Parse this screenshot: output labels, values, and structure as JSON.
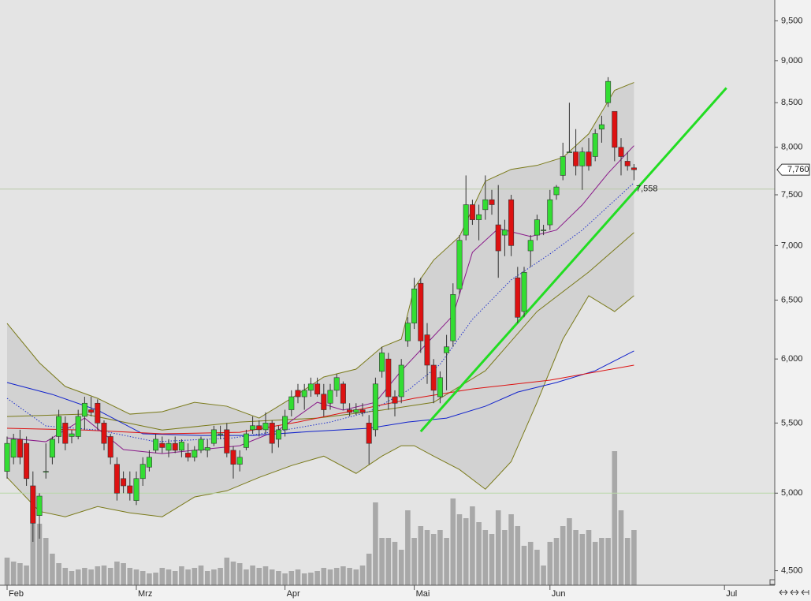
{
  "chart_data": {
    "type": "candlestick",
    "log_scale": true,
    "ylim": [
      4412,
      9773
    ],
    "yticks": [
      {
        "value": 4500,
        "label": "4,500"
      },
      {
        "value": 5000,
        "label": "5,000"
      },
      {
        "value": 5500,
        "label": "5,500"
      },
      {
        "value": 6000,
        "label": "6,000"
      },
      {
        "value": 6500,
        "label": "6,500"
      },
      {
        "value": 7000,
        "label": "7,000"
      },
      {
        "value": 7500,
        "label": "7,500"
      },
      {
        "value": 8000,
        "label": "8,000"
      },
      {
        "value": 8500,
        "label": "8,500"
      },
      {
        "value": 9000,
        "label": "9,000"
      },
      {
        "value": 9500,
        "label": "9,500"
      }
    ],
    "categories": [
      "Feb",
      null,
      null,
      null,
      null,
      null,
      null,
      null,
      null,
      null,
      null,
      null,
      null,
      null,
      null,
      null,
      null,
      null,
      null,
      null,
      "Mrz",
      null,
      null,
      null,
      null,
      null,
      null,
      null,
      null,
      null,
      null,
      null,
      null,
      null,
      null,
      null,
      null,
      null,
      null,
      null,
      null,
      null,
      null,
      "Apr",
      null,
      null,
      null,
      null,
      null,
      null,
      null,
      null,
      null,
      null,
      null,
      null,
      null,
      null,
      null,
      null,
      null,
      null,
      null,
      "Mai",
      null,
      null,
      null,
      null,
      null,
      null,
      null,
      null,
      null,
      null,
      null,
      null,
      null,
      null,
      null,
      null,
      null,
      null,
      null,
      null,
      "Jun",
      null,
      null,
      null,
      null,
      null,
      null,
      null,
      null,
      null,
      null,
      null,
      null,
      null,
      null,
      null,
      null,
      null,
      null,
      null,
      null,
      null,
      null,
      null,
      null,
      null,
      null,
      "Jul"
    ],
    "up_color": "#33dd33",
    "down_color": "#dd1111",
    "open": [
      5150,
      5250,
      5380,
      5350,
      5050,
      4850,
      5150,
      5250,
      5400,
      5500,
      5400,
      5400,
      5550,
      5600,
      5650,
      5500,
      5400,
      5200,
      5100,
      5050,
      4950,
      5100,
      5180,
      5300,
      5350,
      5300,
      5350,
      5300,
      5280,
      5250,
      5300,
      5300,
      5350,
      5420,
      5450,
      5300,
      5200,
      5320,
      5450,
      5480,
      5450,
      5500,
      5380,
      5450,
      5600,
      5750,
      5700,
      5750,
      5800,
      5720,
      5650,
      5750,
      5800,
      5600,
      5580,
      5600,
      5500,
      5450,
      5900,
      6000,
      5700,
      5700,
      6150,
      6300,
      6650,
      6200,
      5950,
      5700,
      6050,
      6150,
      6600,
      7100,
      7400,
      7250,
      7350,
      7450,
      7200,
      7100,
      7450,
      6700,
      6400,
      6950,
      7100,
      7150,
      7200,
      7500,
      7700,
      7950,
      7950,
      7800,
      7950,
      7900,
      8200,
      8500,
      8400,
      8000,
      7850,
      7780,
      null,
      null,
      null,
      null,
      null,
      null,
      null,
      null,
      null,
      null,
      null,
      null,
      null,
      null
    ],
    "high": [
      5400,
      5420,
      5450,
      5400,
      5150,
      5000,
      5350,
      5400,
      5600,
      5550,
      5450,
      5600,
      5700,
      5700,
      5680,
      5520,
      5420,
      5250,
      5150,
      5150,
      5150,
      5250,
      5300,
      5420,
      5400,
      5380,
      5400,
      5380,
      5350,
      5330,
      5400,
      5380,
      5480,
      5480,
      5500,
      5330,
      5300,
      5450,
      5550,
      5520,
      5580,
      5520,
      5480,
      5600,
      5750,
      5800,
      5800,
      5850,
      5850,
      5800,
      5800,
      5880,
      5820,
      5650,
      5650,
      5650,
      5560,
      5850,
      6100,
      6050,
      5750,
      6000,
      6350,
      6700,
      6700,
      6300,
      6000,
      5900,
      6200,
      6650,
      7100,
      7700,
      7450,
      7400,
      7700,
      7550,
      7600,
      7250,
      7500,
      6800,
      6800,
      7100,
      7300,
      7200,
      7550,
      7600,
      8050,
      8500,
      8200,
      8000,
      8100,
      8200,
      8350,
      8800,
      8400,
      8100,
      7950,
      7820,
      null,
      null,
      null,
      null,
      null,
      null,
      null,
      null,
      null,
      null,
      null,
      null,
      null,
      null
    ],
    "low": [
      5100,
      5200,
      5200,
      5050,
      4680,
      4700,
      5100,
      5200,
      5350,
      5300,
      5350,
      5380,
      5450,
      5550,
      5450,
      5300,
      5200,
      4950,
      5000,
      4950,
      4920,
      5050,
      5150,
      5280,
      5280,
      5250,
      5280,
      5250,
      5220,
      5220,
      5280,
      5250,
      5330,
      5380,
      5250,
      5100,
      5150,
      5300,
      5420,
      5400,
      5420,
      5280,
      5320,
      5400,
      5550,
      5650,
      5600,
      5700,
      5700,
      5550,
      5600,
      5700,
      5600,
      5550,
      5560,
      5550,
      5200,
      5400,
      5850,
      5600,
      5550,
      5650,
      6100,
      6250,
      6050,
      5800,
      5650,
      5650,
      5750,
      6100,
      6550,
      7050,
      7200,
      7050,
      7250,
      7300,
      6700,
      6900,
      6900,
      6300,
      6350,
      6800,
      7050,
      7100,
      7150,
      7450,
      7650,
      7950,
      7700,
      7550,
      7750,
      7850,
      8050,
      8450,
      7850,
      7700,
      7750,
      7650,
      null,
      null,
      null,
      null,
      null,
      null,
      null,
      null,
      null,
      null,
      null,
      null,
      null,
      null
    ],
    "close": [
      5350,
      5380,
      5250,
      5100,
      4800,
      4980,
      5150,
      5380,
      5550,
      5350,
      5420,
      5550,
      5650,
      5580,
      5500,
      5350,
      5250,
      5000,
      5050,
      5000,
      5100,
      5200,
      5250,
      5380,
      5320,
      5350,
      5300,
      5360,
      5250,
      5300,
      5380,
      5320,
      5450,
      5420,
      5280,
      5200,
      5250,
      5420,
      5480,
      5450,
      5500,
      5350,
      5450,
      5550,
      5700,
      5700,
      5750,
      5800,
      5720,
      5600,
      5750,
      5850,
      5650,
      5580,
      5600,
      5580,
      5350,
      5800,
      6050,
      5700,
      5650,
      5950,
      6300,
      6600,
      6150,
      5950,
      5750,
      5850,
      6100,
      6550,
      7050,
      7400,
      7250,
      7300,
      7450,
      7400,
      6950,
      7150,
      7000,
      6350,
      6750,
      7050,
      7250,
      7150,
      7450,
      7580,
      7900,
      7950,
      7800,
      7950,
      7800,
      8150,
      8250,
      8750,
      8000,
      7900,
      7800,
      7760,
      null,
      null,
      null,
      null,
      null,
      null,
      null,
      null,
      null,
      null,
      null,
      null,
      null,
      null
    ],
    "volume": [
      35,
      30,
      28,
      25,
      100,
      78,
      60,
      40,
      28,
      22,
      18,
      20,
      22,
      20,
      24,
      25,
      22,
      30,
      28,
      22,
      20,
      18,
      15,
      16,
      22,
      20,
      18,
      24,
      20,
      22,
      25,
      18,
      20,
      22,
      35,
      30,
      28,
      20,
      25,
      22,
      24,
      20,
      18,
      15,
      18,
      20,
      15,
      16,
      18,
      22,
      20,
      22,
      24,
      22,
      20,
      25,
      40,
      105,
      60,
      60,
      55,
      45,
      95,
      60,
      75,
      70,
      65,
      70,
      60,
      110,
      90,
      85,
      100,
      80,
      70,
      65,
      95,
      70,
      90,
      75,
      50,
      55,
      45,
      25,
      55,
      60,
      75,
      85,
      70,
      65,
      70,
      55,
      60,
      60,
      170,
      95,
      60,
      70,
      null,
      null,
      null,
      null,
      null,
      null,
      null,
      null,
      null,
      null,
      null,
      null,
      null,
      null
    ],
    "volume_color": "#a8a8a8",
    "band": {
      "color": "#d2d2d2",
      "line_color": "#7a7a1a",
      "x": [
        0,
        5,
        9,
        14,
        19,
        24,
        29,
        34,
        39,
        44,
        49,
        54,
        58,
        61,
        63,
        66,
        70,
        74,
        78,
        82,
        86,
        90,
        94,
        97
      ],
      "upper": [
        6297,
        5969,
        5780,
        5688,
        5567,
        5585,
        5657,
        5627,
        5537,
        5688,
        5855,
        5918,
        6098,
        6164,
        6609,
        6863,
        7087,
        7640,
        7764,
        7806,
        7890,
        8148,
        8644,
        8737
      ],
      "lower": [
        5108,
        4878,
        4842,
        4910,
        4868,
        4842,
        4974,
        5016,
        5108,
        5191,
        5258,
        5136,
        5258,
        5333,
        5333,
        5258,
        5163,
        5027,
        5219,
        5657,
        6164,
        6539,
        6400,
        6539
      ]
    },
    "overlays": [
      {
        "color": "#7a7a1a",
        "style": "solid",
        "x": [
          0,
          12,
          24,
          36,
          48,
          58,
          66,
          74,
          82,
          90,
          97
        ],
        "values": [
          5549,
          5567,
          5448,
          5507,
          5537,
          5597,
          5657,
          5905,
          6400,
          6753,
          7125
        ]
      },
      {
        "color": "#8a1a8a",
        "style": "solid",
        "x": [
          0,
          6,
          12,
          18,
          24,
          30,
          36,
          42,
          48,
          52,
          57,
          61,
          65,
          69,
          72,
          76,
          81,
          85,
          89,
          93,
          97
        ],
        "values": [
          5390,
          5362,
          5537,
          5305,
          5276,
          5305,
          5333,
          5448,
          5657,
          5597,
          5657,
          5905,
          6131,
          6366,
          6936,
          7164,
          7087,
          7149,
          7398,
          7724,
          8018
        ]
      },
      {
        "color": "#2233cc",
        "style": "dotted",
        "x": [
          0,
          6,
          14,
          23,
          35,
          43,
          50,
          56,
          62,
          67,
          72,
          78,
          84,
          89,
          97
        ],
        "values": [
          5688,
          5478,
          5448,
          5362,
          5390,
          5448,
          5507,
          5585,
          5749,
          5957,
          6332,
          6681,
          6921,
          7149,
          7624
        ]
      },
      {
        "color": "#1122cc",
        "style": "solid",
        "x": [
          0,
          7,
          14,
          21,
          30,
          38,
          47,
          56,
          62,
          68,
          74,
          79,
          85,
          91,
          97
        ],
        "values": [
          5811,
          5718,
          5597,
          5420,
          5408,
          5408,
          5437,
          5461,
          5507,
          5537,
          5627,
          5736,
          5811,
          5905,
          6066
        ]
      },
      {
        "color": "#dd1111",
        "style": "solid",
        "x": [
          0,
          12,
          24,
          36,
          45,
          54,
          63,
          72,
          84,
          97
        ],
        "values": [
          5461,
          5448,
          5420,
          5431,
          5507,
          5597,
          5688,
          5761,
          5830,
          5950
        ]
      }
    ],
    "trend_line": {
      "color": "#22dd22",
      "x": [
        64,
        111.3
      ],
      "values": [
        5437,
        8672
      ]
    },
    "highlight_level": {
      "value": 5000,
      "color": "#b8d8a8"
    },
    "reference_line": {
      "value": 7558,
      "label": "7,558",
      "color": "#33dd33"
    },
    "last_price": {
      "value": 7760,
      "label": "7,760"
    }
  }
}
